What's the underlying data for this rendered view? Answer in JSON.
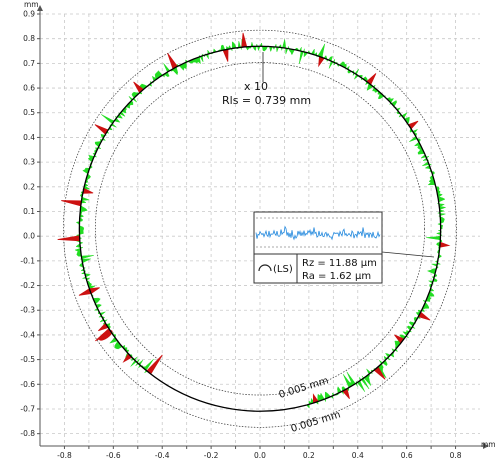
{
  "chart_data": {
    "type": "scatter",
    "title": "",
    "x_unit": "mm",
    "y_unit": "mm",
    "xlim": [
      -0.9,
      0.9
    ],
    "ylim": [
      -0.85,
      0.9
    ],
    "x_ticks": [
      -0.8,
      -0.7,
      -0.6,
      -0.5,
      -0.4,
      -0.3,
      -0.2,
      -0.1,
      0.0,
      0.1,
      0.2,
      0.3,
      0.4,
      0.5,
      0.6,
      0.7,
      0.8
    ],
    "y_ticks": [
      -0.8,
      -0.7,
      -0.6,
      -0.5,
      -0.4,
      -0.3,
      -0.2,
      -0.1,
      0.0,
      0.1,
      0.2,
      0.3,
      0.4,
      0.5,
      0.6,
      0.7,
      0.8,
      0.9
    ],
    "x_tick_labels": [
      "-0.8",
      "",
      "-0.6",
      "",
      "-0.4",
      "",
      "-0.2",
      "",
      "0.0",
      "",
      "0.2",
      "",
      "0.4",
      "",
      "0.6",
      "",
      "0.8"
    ],
    "y_tick_labels": [
      "-0.8",
      "-0.7",
      "-0.6",
      "-0.5",
      "-0.4",
      "-0.3",
      "-0.2",
      "-0.1",
      "0.0",
      "0.1",
      "0.2",
      "0.3",
      "0.4",
      "0.5",
      "0.6",
      "0.7",
      "0.8",
      "0.9"
    ],
    "grid": true,
    "circle": {
      "cx": 0.0,
      "cy": 0.03,
      "r": 0.739
    },
    "tolerance_band_mm": 0.005,
    "magnification": "x 10",
    "annotations": {
      "magnification": "x 10",
      "rls": "Rls = 0.739 mm",
      "tol_upper": "0.005 mm",
      "tol_lower": "0.005 mm",
      "filter": "(LS)",
      "rz": "Rz = 11.88 µm",
      "ra": "Ra = 1.62 µm"
    },
    "colors": {
      "profile_in": "#22dd22",
      "profile_peak": "#cc1111",
      "circle": "#000000",
      "band": "#333333",
      "inset_signal": "#2288dd"
    },
    "missing_arc_deg": [
      -128,
      -75
    ]
  }
}
